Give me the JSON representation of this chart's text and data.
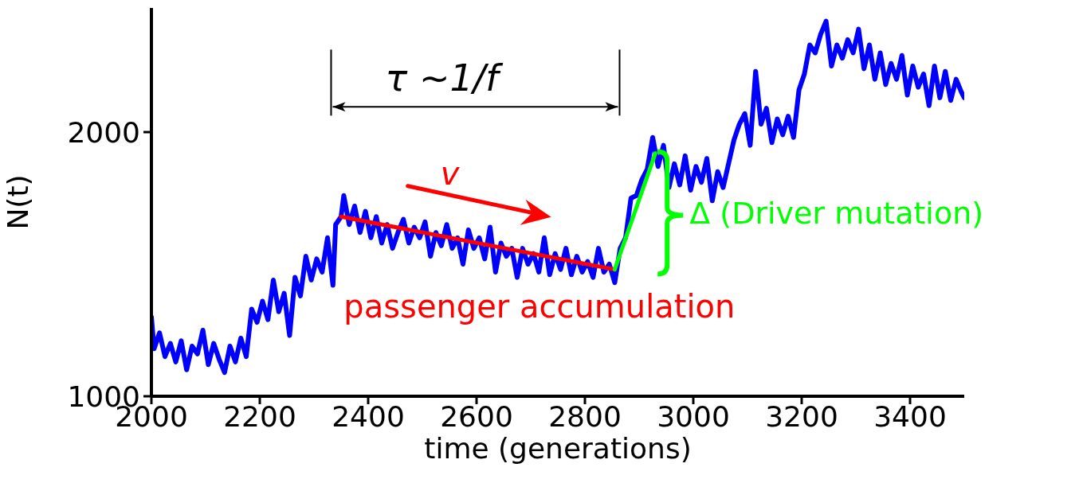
{
  "chart_data": {
    "type": "line",
    "xlabel": "time (generations)",
    "ylabel": "N(t)",
    "xlim": [
      2000,
      3500
    ],
    "xticks": [
      2000,
      2200,
      2400,
      2600,
      2800,
      3000,
      3200,
      3400
    ],
    "ylim": [
      1000,
      2470
    ],
    "yticks": [
      1000,
      2000
    ],
    "grid": false,
    "marker": "none",
    "line_style": "solid",
    "series": [
      {
        "color": "#0000ff",
        "x": [
          2000,
          2005,
          2015,
          2025,
          2035,
          2045,
          2055,
          2065,
          2075,
          2085,
          2095,
          2105,
          2115,
          2125,
          2135,
          2145,
          2155,
          2165,
          2175,
          2185,
          2195,
          2205,
          2215,
          2225,
          2235,
          2245,
          2255,
          2265,
          2275,
          2285,
          2295,
          2305,
          2315,
          2325,
          2335,
          2340,
          2350,
          2355,
          2365,
          2375,
          2385,
          2395,
          2405,
          2415,
          2425,
          2435,
          2445,
          2455,
          2465,
          2475,
          2485,
          2495,
          2505,
          2515,
          2525,
          2535,
          2545,
          2555,
          2565,
          2575,
          2585,
          2595,
          2605,
          2615,
          2625,
          2635,
          2645,
          2655,
          2665,
          2675,
          2685,
          2695,
          2705,
          2715,
          2725,
          2735,
          2745,
          2755,
          2765,
          2775,
          2785,
          2795,
          2805,
          2815,
          2825,
          2835,
          2845,
          2855,
          2865,
          2875,
          2885,
          2895,
          2905,
          2915,
          2925,
          2935,
          2945,
          2955,
          2965,
          2975,
          2985,
          2995,
          3005,
          3015,
          3025,
          3035,
          3045,
          3055,
          3065,
          3075,
          3085,
          3095,
          3105,
          3115,
          3125,
          3135,
          3145,
          3155,
          3165,
          3175,
          3185,
          3195,
          3205,
          3215,
          3225,
          3235,
          3245,
          3255,
          3265,
          3275,
          3285,
          3295,
          3305,
          3315,
          3325,
          3335,
          3345,
          3355,
          3365,
          3375,
          3385,
          3395,
          3405,
          3415,
          3425,
          3435,
          3445,
          3455,
          3465,
          3475,
          3485,
          3495,
          3500
        ],
        "values": [
          1300,
          1180,
          1240,
          1150,
          1200,
          1130,
          1210,
          1100,
          1190,
          1160,
          1250,
          1120,
          1200,
          1140,
          1090,
          1190,
          1130,
          1220,
          1150,
          1330,
          1280,
          1360,
          1290,
          1440,
          1320,
          1390,
          1230,
          1450,
          1380,
          1530,
          1440,
          1520,
          1470,
          1600,
          1420,
          1650,
          1680,
          1760,
          1650,
          1720,
          1620,
          1700,
          1600,
          1680,
          1580,
          1650,
          1560,
          1620,
          1670,
          1580,
          1640,
          1600,
          1660,
          1530,
          1620,
          1570,
          1650,
          1560,
          1600,
          1500,
          1630,
          1560,
          1600,
          1520,
          1640,
          1470,
          1580,
          1530,
          1560,
          1450,
          1560,
          1500,
          1540,
          1470,
          1600,
          1460,
          1540,
          1480,
          1560,
          1460,
          1530,
          1470,
          1510,
          1450,
          1560,
          1470,
          1500,
          1430,
          1560,
          1600,
          1750,
          1760,
          1820,
          1860,
          1980,
          1870,
          1950,
          1790,
          1880,
          1800,
          1910,
          1780,
          1870,
          1810,
          1900,
          1740,
          1850,
          1790,
          1880,
          1970,
          2030,
          2070,
          1950,
          2230,
          2030,
          2090,
          1960,
          2050,
          1990,
          2060,
          1980,
          2160,
          2220,
          2330,
          2300,
          2370,
          2420,
          2250,
          2330,
          2280,
          2350,
          2300,
          2390,
          2240,
          2330,
          2200,
          2300,
          2180,
          2260,
          2200,
          2290,
          2140,
          2250,
          2170,
          2220,
          2100,
          2250,
          2130,
          2230,
          2120,
          2200,
          2150,
          2130
        ]
      },
      {
        "color": "#ff0000",
        "x": [
          2350,
          2855
        ],
        "values": [
          1680,
          1480
        ]
      },
      {
        "color": "#00ff00",
        "x": [
          2855,
          2930
        ],
        "values": [
          1480,
          1920
        ]
      }
    ],
    "annotations": [
      "τ ~1/f",
      "v",
      {
        "text": "passenger accumulation",
        "x": 2716,
        "y": 1535
      },
      "Δ (Driver mutation)"
    ]
  }
}
